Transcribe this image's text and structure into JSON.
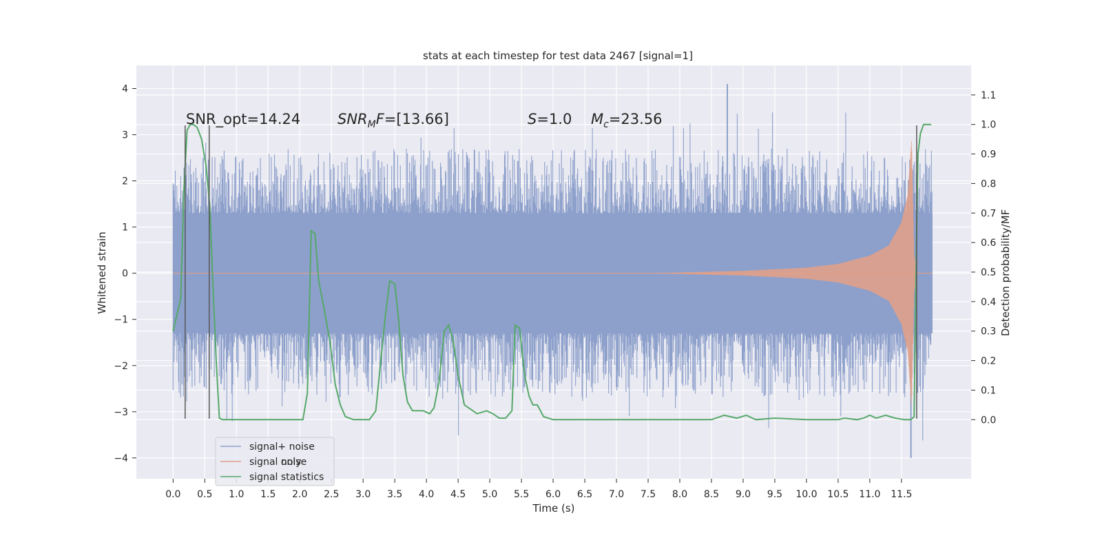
{
  "chart_data": {
    "type": "line",
    "title": "stats at each timestep for test data 2467 [signal=1]",
    "xlabel": "Time (s)",
    "ylabel": "Whitened strain",
    "y2label": "Detection probability/MF",
    "xlim": [
      -0.58,
      12.6
    ],
    "ylim": [
      -4.45,
      4.5
    ],
    "y2lim": [
      -0.2,
      1.2
    ],
    "x_ticks": [
      0.0,
      0.5,
      1.0,
      1.5,
      2.0,
      2.5,
      3.0,
      3.5,
      4.0,
      4.5,
      5.0,
      5.5,
      6.0,
      6.5,
      7.0,
      7.5,
      8.0,
      8.5,
      9.0,
      9.5,
      10.0,
      10.5,
      11.0,
      11.5
    ],
    "x_tick_labels": [
      "0.0",
      "0.5",
      "1.0",
      "1.5",
      "2.0",
      "2.5",
      "3.0",
      "3.5",
      "4.0",
      "4.5",
      "5.0",
      "5.5",
      "6.0",
      "6.5",
      "7.0",
      "7.5",
      "8.0",
      "8.5",
      "9.0",
      "9.5",
      "10.0",
      "10.5",
      "11.0",
      "11.5"
    ],
    "y_ticks": [
      -4,
      -3,
      -2,
      -1,
      0,
      1,
      2,
      3,
      4
    ],
    "y_tick_labels": [
      "−4",
      "−3",
      "−2",
      "−1",
      "0",
      "1",
      "2",
      "3",
      "4"
    ],
    "y2_ticks": [
      0.0,
      0.1,
      0.2,
      0.3,
      0.4,
      0.5,
      0.6,
      0.7,
      0.8,
      0.9,
      1.0,
      1.1
    ],
    "y2_tick_labels": [
      "0.0",
      "0.1",
      "0.2",
      "0.3",
      "0.4",
      "0.5",
      "0.6",
      "0.7",
      "0.8",
      "0.9",
      "1.0",
      "1.1"
    ],
    "grid": true,
    "legend_position": "bottom-left",
    "colors": {
      "background": "#eaeaf2",
      "noise": "#8da0cb",
      "signal": "#e0a08a",
      "stat": "#55a868",
      "vline": "#555555"
    },
    "series": [
      {
        "name": "signal+ noise",
        "kind": "noise",
        "x_range": [
          0.0,
          11.99
        ],
        "envelope_upper": 1.3,
        "envelope_lower": -1.3,
        "typical_peak": 2.3,
        "max_value": 4.1,
        "min_value": -4.0
      },
      {
        "name": "signal only",
        "kind": "chirp",
        "x_range": [
          0.0,
          11.8
        ],
        "amplitude": [
          [
            7.5,
            0.0
          ],
          [
            9.0,
            0.05
          ],
          [
            10.0,
            0.12
          ],
          [
            10.5,
            0.2
          ],
          [
            11.0,
            0.38
          ],
          [
            11.3,
            0.6
          ],
          [
            11.5,
            1.1
          ],
          [
            11.6,
            1.7
          ],
          [
            11.66,
            2.9
          ],
          [
            11.7,
            0.4
          ],
          [
            11.75,
            0.0
          ]
        ]
      },
      {
        "name": "signal statistics",
        "kind": "line",
        "axis": "right",
        "x": [
          0.0,
          0.12,
          0.17,
          0.22,
          0.27,
          0.32,
          0.38,
          0.45,
          0.52,
          0.58,
          0.63,
          0.68,
          0.73,
          0.78,
          0.9,
          1.2,
          1.6,
          2.05,
          2.12,
          2.18,
          2.24,
          2.3,
          2.38,
          2.48,
          2.56,
          2.64,
          2.72,
          2.85,
          3.1,
          3.2,
          3.27,
          3.35,
          3.42,
          3.5,
          3.56,
          3.63,
          3.7,
          3.78,
          3.85,
          3.95,
          4.05,
          4.12,
          4.2,
          4.28,
          4.35,
          4.42,
          4.5,
          4.6,
          4.8,
          4.95,
          5.05,
          5.15,
          5.25,
          5.35,
          5.4,
          5.47,
          5.55,
          5.62,
          5.68,
          5.75,
          5.85,
          6.0,
          6.5,
          7.0,
          7.5,
          8.0,
          8.5,
          8.7,
          8.8,
          8.9,
          9.05,
          9.2,
          9.5,
          10.0,
          10.5,
          10.6,
          10.8,
          10.9,
          11.0,
          11.1,
          11.25,
          11.4,
          11.55,
          11.65,
          11.7,
          11.73,
          11.76,
          11.8,
          11.85,
          11.92,
          11.97
        ],
        "values": [
          0.3,
          0.41,
          0.78,
          0.98,
          1.0,
          1.0,
          0.99,
          0.95,
          0.86,
          0.72,
          0.45,
          0.2,
          0.005,
          0.0,
          0.0,
          0.0,
          0.0,
          0.0,
          0.09,
          0.64,
          0.63,
          0.47,
          0.38,
          0.26,
          0.12,
          0.05,
          0.01,
          0.0,
          0.0,
          0.03,
          0.18,
          0.35,
          0.47,
          0.46,
          0.34,
          0.15,
          0.06,
          0.03,
          0.03,
          0.03,
          0.02,
          0.04,
          0.13,
          0.3,
          0.32,
          0.27,
          0.15,
          0.05,
          0.02,
          0.03,
          0.02,
          0.005,
          0.005,
          0.03,
          0.32,
          0.31,
          0.15,
          0.08,
          0.05,
          0.05,
          0.01,
          0.0,
          0.0,
          0.0,
          0.0,
          0.0,
          0.0,
          0.015,
          0.01,
          0.005,
          0.015,
          0.0,
          0.005,
          0.0,
          0.0,
          0.005,
          0.0,
          0.005,
          0.015,
          0.005,
          0.015,
          0.005,
          0.0,
          0.0,
          0.01,
          0.5,
          0.9,
          0.97,
          1.0,
          1.0,
          1.0
        ]
      }
    ],
    "vertical_lines": [
      {
        "x": 0.19,
        "y_top": 3.2,
        "y_bottom": -3.15
      },
      {
        "x": 0.57,
        "y_top": 3.2,
        "y_bottom": -3.15
      },
      {
        "x": 11.74,
        "y_top": 3.2,
        "y_bottom": -3.15
      }
    ],
    "annotations": [
      {
        "id": "snr_opt",
        "text": "SNR_opt=14.24",
        "x": 0.2,
        "y": 3.2
      },
      {
        "id": "snr_mf",
        "text_italic": "SNR",
        "text_sub": "M",
        "text_italic2": "F",
        "text_rest": "=[13.66]",
        "x": 2.6,
        "y": 3.2
      },
      {
        "id": "s_val",
        "text_italic": "S",
        "text_rest": "=1.0",
        "x": 5.6,
        "y": 3.2
      },
      {
        "id": "mc_val",
        "text_italic": "M",
        "text_sub": "c",
        "text_rest": "=23.56",
        "x": 6.6,
        "y": 3.2
      }
    ],
    "legend": {
      "entries": [
        {
          "label": "signal+ noise",
          "color": "#8da0cb"
        },
        {
          "label": "signal only",
          "color": "#e0a08a"
        },
        {
          "label": "signal statistics",
          "color": "#55a868"
        }
      ],
      "ghost_text": "noise"
    }
  }
}
